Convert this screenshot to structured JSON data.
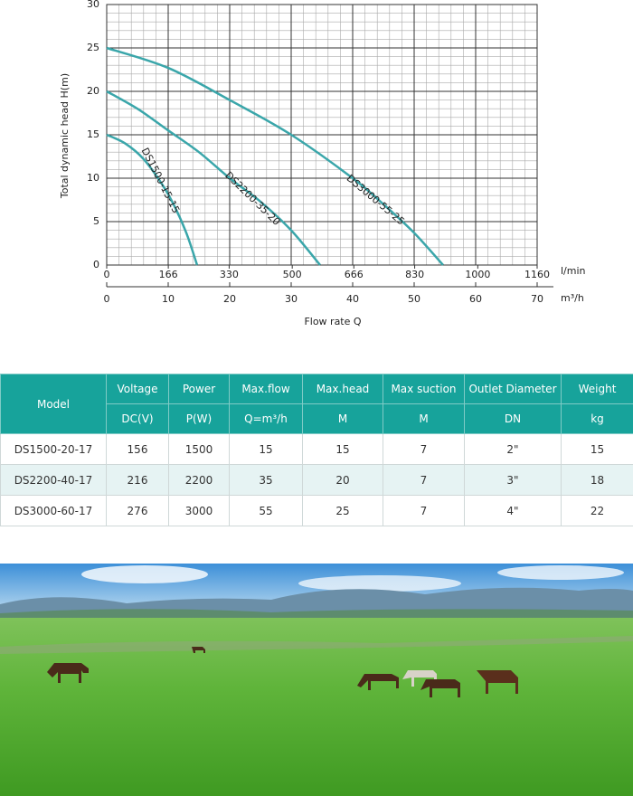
{
  "chart_data": {
    "type": "line",
    "y_label": "Total dynamic head H(m)",
    "x_label": "Flow rate Q",
    "x_unit": "m³/h",
    "x2_unit": "l/min",
    "xlim": [
      0,
      70
    ],
    "xticks": [
      0,
      10,
      20,
      30,
      40,
      50,
      60,
      70
    ],
    "x2lim": [
      0,
      1160
    ],
    "x2ticks": [
      0,
      166,
      330,
      500,
      666,
      830,
      1000,
      1160
    ],
    "ylim": [
      0,
      30
    ],
    "yticks": [
      0,
      5,
      10,
      15,
      20,
      25,
      30
    ],
    "grid": true,
    "series": [
      {
        "name": "DS1500-15-15",
        "color": "#3aa6aa",
        "x": [
          0,
          3,
          6,
          9,
          11,
          13,
          14.7
        ],
        "values": [
          15,
          14,
          12.2,
          9.3,
          6.8,
          3.6,
          0
        ]
      },
      {
        "name": "DS2200-35-20",
        "color": "#3aa6aa",
        "x": [
          0,
          5,
          10,
          15,
          20,
          25,
          30,
          34.7
        ],
        "values": [
          20,
          18,
          15.5,
          13,
          10,
          7.3,
          4,
          0
        ]
      },
      {
        "name": "DS3000-55-25",
        "color": "#3aa6aa",
        "x": [
          0,
          10,
          20,
          30,
          40,
          45,
          50,
          54.7
        ],
        "values": [
          25,
          22.7,
          19,
          15,
          10,
          7,
          3.7,
          0
        ]
      }
    ]
  },
  "table": {
    "header": [
      "Model",
      "Voltage",
      "Power",
      "Max.flow",
      "Max.head",
      "Max suction",
      "Outlet Diameter",
      "Weight"
    ],
    "units": [
      "DC(V)",
      "P(W)",
      "Q=m³/h",
      "M",
      "M",
      "DN",
      "kg"
    ],
    "rows": [
      [
        "DS1500-20-17",
        "156",
        "1500",
        "15",
        "15",
        "7",
        "2\"",
        "15"
      ],
      [
        "DS2200-40-17",
        "216",
        "2200",
        "35",
        "20",
        "7",
        "3\"",
        "18"
      ],
      [
        "DS3000-60-17",
        "276",
        "3000",
        "55",
        "25",
        "7",
        "4\"",
        "22"
      ]
    ]
  }
}
